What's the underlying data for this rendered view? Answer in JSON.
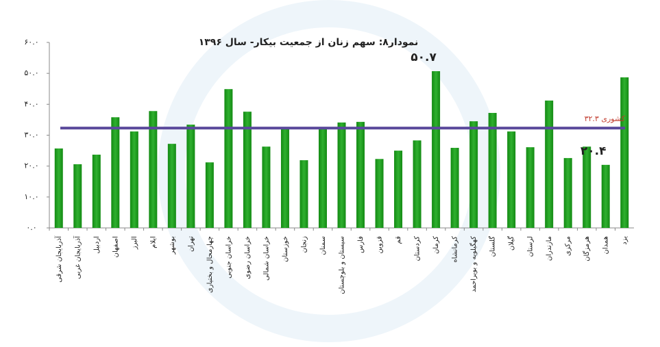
{
  "chart_data": {
    "type": "bar",
    "title": "نمودار۸: سهم زنان از جمعیت بیکار- سال ۱۳۹۶",
    "categories": [
      "آذربایجان شرقی",
      "آذربایجان غربی",
      "اردبیل",
      "اصفهان",
      "البرز",
      "ایلام",
      "بوشهر",
      "تهران",
      "چهارمحال و بختیاری",
      "خراسان جنوبی",
      "خراسان رضوی",
      "خراسان شمالی",
      "خوزستان",
      "زنجان",
      "سمنان",
      "سیستان و بلوچستان",
      "فارس",
      "قزوین",
      "قم",
      "کردستان",
      "کرمان",
      "کرمانشاه",
      "کهگیلویه و بویراحمد",
      "گلستان",
      "گیلان",
      "لرستان",
      "مازندران",
      "مرکزی",
      "هرمزگان",
      "همدان",
      "یزد"
    ],
    "values": [
      25.7,
      20.6,
      23.7,
      35.8,
      31.2,
      37.8,
      27.2,
      33.4,
      21.2,
      44.9,
      37.6,
      26.3,
      31.9,
      21.9,
      31.9,
      34.1,
      34.3,
      22.3,
      25.0,
      28.3,
      50.7,
      25.9,
      34.5,
      37.2,
      31.2,
      26.1,
      41.2,
      22.6,
      26.3,
      20.4,
      48.7
    ],
    "value_labels": [
      null,
      null,
      null,
      null,
      null,
      null,
      null,
      null,
      null,
      null,
      null,
      null,
      null,
      null,
      null,
      null,
      null,
      null,
      null,
      null,
      "۵۰.۷",
      null,
      null,
      null,
      null,
      null,
      null,
      null,
      null,
      "۲۰.۴",
      null
    ],
    "color": "#1f9a1f",
    "ylim": [
      0,
      60
    ],
    "yticks": [
      {
        "value": 0,
        "label": "۰.۰"
      },
      {
        "value": 10,
        "label": "۱۰.۰"
      },
      {
        "value": 20,
        "label": "۲۰.۰"
      },
      {
        "value": 30,
        "label": "۳۰.۰"
      },
      {
        "value": 40,
        "label": "۴۰.۰"
      },
      {
        "value": 50,
        "label": "۵۰.۰"
      },
      {
        "value": 60,
        "label": "۶۰.۰"
      }
    ],
    "reference_line": {
      "value": 32.3,
      "label": "کشوری ۳۲.۳",
      "color": "#5b4a9c",
      "label_color": "#c0392b"
    }
  }
}
